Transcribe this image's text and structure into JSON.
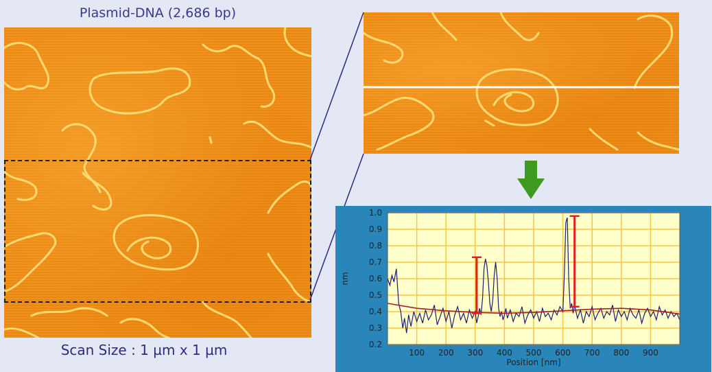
{
  "header": {
    "title": "Plasmid-DNA (2,686 bp)"
  },
  "footer": {
    "scan_size": "Scan Size : 1 µm x 1 µm"
  },
  "colors": {
    "background": "#e4e8f4",
    "afm_surface": "#f08c14",
    "dna_strand": "#ffe27a",
    "arrow": "#3f9a22",
    "panel": "#2a86b8",
    "plot_bg": "#ffffcc",
    "grid": "#f5c44a",
    "trace": "#1c1c70",
    "baseline": "#a0202a",
    "marker": "#e02020"
  },
  "icons": {
    "arrow": "green-down-arrow-icon"
  },
  "chart_data": {
    "type": "line",
    "title": "",
    "xlabel": "Position [nm]",
    "ylabel": "nm",
    "xlim": [
      0,
      1000
    ],
    "ylim": [
      0.2,
      1.0
    ],
    "xticks": [
      100,
      200,
      300,
      400,
      500,
      600,
      700,
      800,
      900
    ],
    "xtick_labels": [
      "100",
      "200",
      "300",
      "400",
      "500",
      "600",
      "700",
      "800",
      "900"
    ],
    "yticks": [
      0.2,
      0.3,
      0.4,
      0.5,
      0.6,
      0.7,
      0.8,
      0.9,
      1.0
    ],
    "ytick_labels": [
      "0.2",
      "0.3",
      "0.4",
      "0.5",
      "0.6",
      "0.7",
      "0.8",
      "0.9",
      "1.0"
    ],
    "grid": true,
    "series": [
      {
        "x": [
          0,
          8,
          15,
          22,
          30,
          38,
          45,
          52,
          58,
          65,
          72,
          80,
          90,
          100,
          110,
          120,
          130,
          140,
          150,
          160,
          170,
          180,
          190,
          200,
          210,
          220,
          230,
          240,
          250,
          260,
          270,
          280,
          290,
          300,
          305,
          310,
          315,
          320,
          325,
          330,
          335,
          340,
          345,
          350,
          355,
          360,
          365,
          370,
          375,
          380,
          385,
          390,
          395,
          400,
          405,
          410,
          420,
          430,
          440,
          450,
          460,
          470,
          480,
          490,
          500,
          510,
          520,
          530,
          540,
          550,
          560,
          570,
          580,
          590,
          600,
          605,
          610,
          615,
          620,
          625,
          630,
          635,
          640,
          650,
          660,
          670,
          680,
          690,
          700,
          710,
          720,
          730,
          740,
          750,
          760,
          770,
          780,
          790,
          800,
          810,
          820,
          830,
          840,
          850,
          860,
          870,
          880,
          890,
          900,
          910,
          920,
          930,
          940,
          950,
          960,
          970,
          980,
          990,
          1000
        ],
        "y": [
          0.6,
          0.56,
          0.62,
          0.58,
          0.66,
          0.45,
          0.4,
          0.3,
          0.36,
          0.27,
          0.38,
          0.31,
          0.4,
          0.34,
          0.39,
          0.33,
          0.41,
          0.35,
          0.38,
          0.44,
          0.32,
          0.37,
          0.42,
          0.34,
          0.4,
          0.3,
          0.38,
          0.43,
          0.35,
          0.39,
          0.33,
          0.41,
          0.36,
          0.4,
          0.33,
          0.37,
          0.42,
          0.38,
          0.48,
          0.66,
          0.72,
          0.68,
          0.58,
          0.45,
          0.4,
          0.47,
          0.62,
          0.7,
          0.6,
          0.42,
          0.37,
          0.4,
          0.35,
          0.38,
          0.42,
          0.36,
          0.41,
          0.34,
          0.39,
          0.37,
          0.43,
          0.33,
          0.38,
          0.41,
          0.36,
          0.4,
          0.34,
          0.42,
          0.37,
          0.39,
          0.35,
          0.41,
          0.38,
          0.43,
          0.4,
          0.62,
          0.94,
          0.97,
          0.6,
          0.42,
          0.45,
          0.39,
          0.44,
          0.36,
          0.41,
          0.33,
          0.4,
          0.37,
          0.43,
          0.35,
          0.39,
          0.42,
          0.36,
          0.4,
          0.38,
          0.44,
          0.34,
          0.41,
          0.37,
          0.4,
          0.35,
          0.42,
          0.38,
          0.36,
          0.41,
          0.33,
          0.39,
          0.42,
          0.37,
          0.4,
          0.35,
          0.43,
          0.38,
          0.41,
          0.36,
          0.4,
          0.37,
          0.39,
          0.35
        ]
      },
      {
        "x": [
          0,
          100,
          200,
          300,
          400,
          500,
          600,
          700,
          800,
          900,
          1000
        ],
        "y": [
          0.45,
          0.42,
          0.405,
          0.395,
          0.39,
          0.395,
          0.405,
          0.415,
          0.42,
          0.41,
          0.385
        ]
      }
    ],
    "markers": [
      {
        "x": 305,
        "y_bottom": 0.39,
        "y_top": 0.73
      },
      {
        "x": 640,
        "y_bottom": 0.43,
        "y_top": 0.98
      }
    ]
  }
}
